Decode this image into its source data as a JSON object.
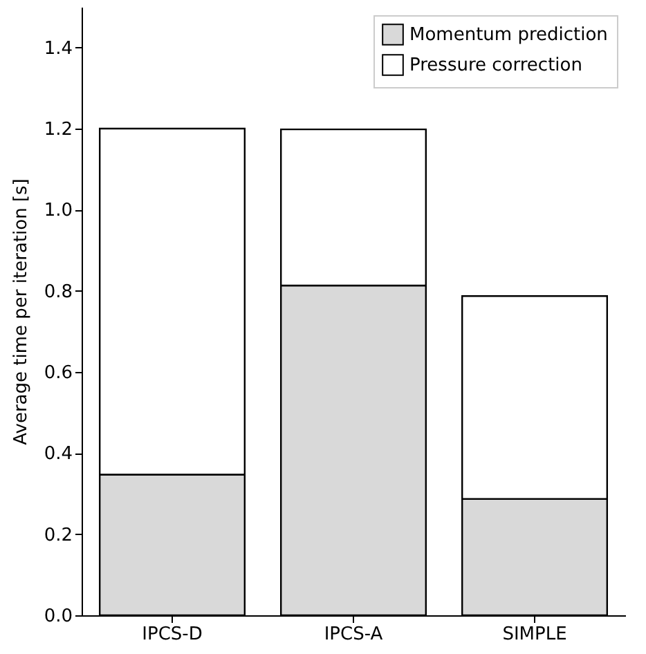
{
  "chart_data": {
    "type": "bar",
    "stacked": true,
    "ylabel": "Average time per iteration [s]",
    "categories": [
      "IPCS-D",
      "IPCS-A",
      "SIMPLE"
    ],
    "series": [
      {
        "name": "Momentum prediction",
        "color": "#d9d9d9",
        "values": [
          0.347,
          0.813,
          0.287
        ]
      },
      {
        "name": "Pressure correction",
        "color": "#ffffff",
        "values": [
          0.853,
          0.385,
          0.5
        ]
      }
    ],
    "ylim": [
      0,
      1.5
    ],
    "yticks": [
      {
        "value": 0,
        "label": "0.0"
      },
      0.2,
      0.4,
      0.6,
      0.8,
      {
        "value": 1,
        "label": "1.0"
      },
      1.2,
      1.4
    ],
    "grid": false,
    "legend": "top right"
  }
}
